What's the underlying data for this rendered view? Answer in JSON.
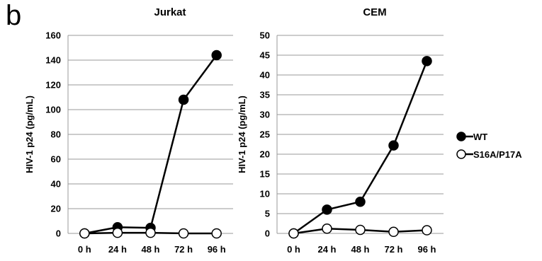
{
  "panel_label": "b",
  "legend": {
    "items": [
      {
        "label": "WT",
        "marker": "filled"
      },
      {
        "label": "S16A/P17A",
        "marker": "open"
      }
    ]
  },
  "colors": {
    "line": "#000000",
    "grid": "#999999",
    "filled_marker": "#000000",
    "open_marker": "#ffffff"
  },
  "chart_data": [
    {
      "type": "line",
      "title": "Jurkat",
      "ylabel": "HIV-1 p24 (pg/mL)",
      "xlabel": "",
      "categories": [
        "0 h",
        "24 h",
        "48 h",
        "72 h",
        "96 h"
      ],
      "ylim": [
        0,
        160
      ],
      "yticks": [
        0,
        20,
        40,
        60,
        80,
        100,
        120,
        140,
        160
      ],
      "grid": "horizontal",
      "series": [
        {
          "name": "WT",
          "values": [
            0,
            5,
            4.5,
            108,
            144
          ]
        },
        {
          "name": "S16A/P17A",
          "values": [
            0,
            0.5,
            0.5,
            0,
            0
          ]
        }
      ]
    },
    {
      "type": "line",
      "title": "CEM",
      "ylabel": "HIV-1 p24 (pg/mL)",
      "xlabel": "",
      "categories": [
        "0 h",
        "24 h",
        "48 h",
        "72 h",
        "96 h"
      ],
      "ylim": [
        0,
        50
      ],
      "yticks": [
        0,
        5,
        10,
        15,
        20,
        25,
        30,
        35,
        40,
        45,
        50
      ],
      "grid": "horizontal",
      "series": [
        {
          "name": "WT",
          "values": [
            0,
            6,
            8,
            22.2,
            43.5
          ]
        },
        {
          "name": "S16A/P17A",
          "values": [
            0,
            1.2,
            0.9,
            0.4,
            0.8
          ]
        }
      ]
    }
  ]
}
